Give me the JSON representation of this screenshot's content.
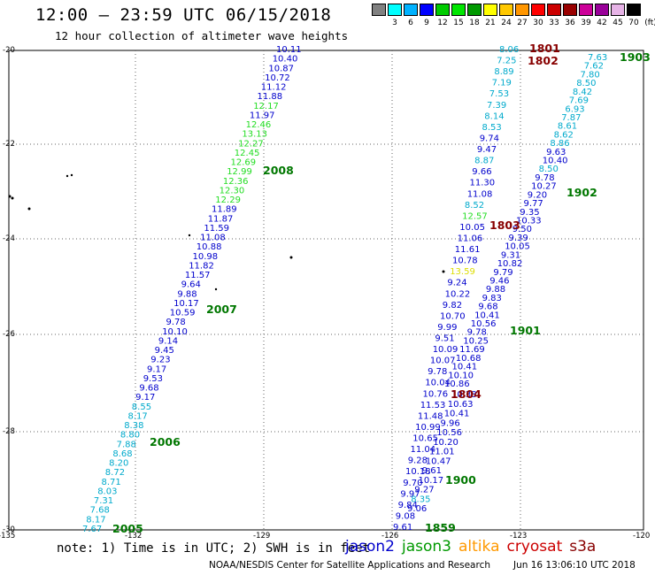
{
  "header": {
    "title": "12:00 — 23:59 UTC 06/15/2018",
    "subtitle": "12 hour collection of altimeter wave heights"
  },
  "color_scale": {
    "unit": "(ft)",
    "bins": [
      {
        "label": "",
        "color": "#808080"
      },
      {
        "label": "3",
        "color": "#00ffff"
      },
      {
        "label": "6",
        "color": "#00b2ff"
      },
      {
        "label": "9",
        "color": "#0000ff"
      },
      {
        "label": "12",
        "color": "#00cc00"
      },
      {
        "label": "15",
        "color": "#00e600"
      },
      {
        "label": "18",
        "color": "#009900"
      },
      {
        "label": "21",
        "color": "#ffff00"
      },
      {
        "label": "24",
        "color": "#ffc800"
      },
      {
        "label": "27",
        "color": "#ff9600"
      },
      {
        "label": "30",
        "color": "#ff0000"
      },
      {
        "label": "33",
        "color": "#cc0000"
      },
      {
        "label": "36",
        "color": "#990000"
      },
      {
        "label": "39",
        "color": "#cc0099"
      },
      {
        "label": "42",
        "color": "#990099"
      },
      {
        "label": "45",
        "color": "#e6b3e6"
      },
      {
        "label": "70",
        "color": "#000000"
      }
    ]
  },
  "map": {
    "lat_labels": [
      "-20",
      "-22",
      "-24",
      "-26",
      "-28",
      "-30"
    ],
    "lon_labels": [
      "-135",
      "-132",
      "-129",
      "-126",
      "-123",
      "-120"
    ],
    "colors": {
      "c1": "#00aacc",
      "c2": "#0000cc",
      "c3": "#22dd22",
      "c4": "#dddd00",
      "time": "#007700",
      "s3a": "#880000"
    },
    "track_labels": [
      {
        "text": "2008",
        "color": "time"
      },
      {
        "text": "2007",
        "color": "time"
      },
      {
        "text": "2006",
        "color": "time"
      },
      {
        "text": "2005",
        "color": "time"
      },
      {
        "text": "1903",
        "color": "time"
      },
      {
        "text": "1902",
        "color": "time"
      },
      {
        "text": "1901",
        "color": "time"
      },
      {
        "text": "1900",
        "color": "time"
      },
      {
        "text": "1859",
        "color": "time"
      },
      {
        "text": "1801",
        "color": "s3a"
      },
      {
        "text": "1802",
        "color": "s3a"
      },
      {
        "text": "1803",
        "color": "s3a"
      },
      {
        "text": "1804",
        "color": "s3a"
      }
    ],
    "track_a": [
      [
        "10.11",
        "c2"
      ],
      [
        "10.40",
        "c2"
      ],
      [
        "10.87",
        "c2"
      ],
      [
        "10.72",
        "c2"
      ],
      [
        "11.12",
        "c2"
      ],
      [
        "11.88",
        "c2"
      ],
      [
        "12.17",
        "c3"
      ],
      [
        "11.97",
        "c2"
      ],
      [
        "12.46",
        "c3"
      ],
      [
        "13.13",
        "c3"
      ],
      [
        "12.27",
        "c3"
      ],
      [
        "12.45",
        "c3"
      ],
      [
        "12.69",
        "c3"
      ],
      [
        "12.99",
        "c3"
      ],
      [
        "12.36",
        "c3"
      ],
      [
        "12.30",
        "c3"
      ],
      [
        "12.29",
        "c3"
      ],
      [
        "11.89",
        "c2"
      ],
      [
        "11.87",
        "c2"
      ],
      [
        "11.59",
        "c2"
      ],
      [
        "11.08",
        "c2"
      ],
      [
        "10.88",
        "c2"
      ],
      [
        "10.98",
        "c2"
      ],
      [
        "11.82",
        "c2"
      ],
      [
        "11.57",
        "c2"
      ],
      [
        "9.64",
        "c2"
      ],
      [
        "9.88",
        "c2"
      ],
      [
        "10.17",
        "c2"
      ],
      [
        "10.59",
        "c2"
      ],
      [
        "9.78",
        "c2"
      ],
      [
        "10.10",
        "c2"
      ],
      [
        "9.14",
        "c2"
      ],
      [
        "9.45",
        "c2"
      ],
      [
        "9.23",
        "c2"
      ],
      [
        "9.17",
        "c2"
      ],
      [
        "9.53",
        "c2"
      ],
      [
        "9.68",
        "c2"
      ],
      [
        "9.17",
        "c2"
      ],
      [
        "8.55",
        "c1"
      ],
      [
        "8.17",
        "c1"
      ],
      [
        "8.38",
        "c1"
      ],
      [
        "8.80",
        "c1"
      ],
      [
        "7.88",
        "c1"
      ],
      [
        "8.68",
        "c1"
      ],
      [
        "8.20",
        "c1"
      ],
      [
        "8.72",
        "c1"
      ],
      [
        "8.71",
        "c1"
      ],
      [
        "8.03",
        "c1"
      ],
      [
        "7.31",
        "c1"
      ],
      [
        "7.68",
        "c1"
      ],
      [
        "8.17",
        "c1"
      ],
      [
        "7.67",
        "c1"
      ]
    ],
    "track_b": [
      [
        "8.06",
        "c1"
      ],
      [
        "7.25",
        "c1"
      ],
      [
        "8.89",
        "c1"
      ],
      [
        "7.19",
        "c1"
      ],
      [
        "7.53",
        "c1"
      ],
      [
        "7.39",
        "c1"
      ],
      [
        "8.14",
        "c1"
      ],
      [
        "8.53",
        "c1"
      ],
      [
        "9.74",
        "c2"
      ],
      [
        "9.47",
        "c2"
      ],
      [
        "8.87",
        "c1"
      ],
      [
        "9.66",
        "c2"
      ],
      [
        "11.30",
        "c2"
      ],
      [
        "11.08",
        "c2"
      ],
      [
        "8.52",
        "c1"
      ],
      [
        "12.57",
        "c3"
      ],
      [
        "10.05",
        "c2"
      ],
      [
        "11.06",
        "c2"
      ],
      [
        "11.61",
        "c2"
      ],
      [
        "10.78",
        "c2"
      ],
      [
        "13.59",
        "c4"
      ],
      [
        "9.24",
        "c2"
      ],
      [
        "10.22",
        "c2"
      ],
      [
        "9.82",
        "c2"
      ],
      [
        "10.70",
        "c2"
      ],
      [
        "9.99",
        "c2"
      ],
      [
        "9.51",
        "c2"
      ],
      [
        "10.09",
        "c2"
      ],
      [
        "10.07",
        "c2"
      ],
      [
        "9.78",
        "c2"
      ],
      [
        "10.04",
        "c2"
      ],
      [
        "10.76",
        "c2"
      ],
      [
        "11.53",
        "c2"
      ],
      [
        "11.48",
        "c2"
      ],
      [
        "10.99",
        "c2"
      ],
      [
        "10.65",
        "c2"
      ],
      [
        "11.04",
        "c2"
      ],
      [
        "9.28",
        "c2"
      ],
      [
        "10.18",
        "c2"
      ],
      [
        "9.70",
        "c2"
      ],
      [
        "9.97",
        "c2"
      ],
      [
        "9.84",
        "c2"
      ],
      [
        "9.08",
        "c2"
      ],
      [
        "9.61",
        "c2"
      ]
    ],
    "track_c": [
      [
        "10.38",
        "c2"
      ],
      [
        "10.63",
        "c2"
      ],
      [
        "10.41",
        "c2"
      ],
      [
        "9.96",
        "c2"
      ],
      [
        "10.56",
        "c2"
      ],
      [
        "10.20",
        "c2"
      ],
      [
        "11.01",
        "c2"
      ],
      [
        "10.47",
        "c2"
      ],
      [
        "9.61",
        "c2"
      ],
      [
        "10.17",
        "c2"
      ],
      [
        "9.27",
        "c2"
      ],
      [
        "8.35",
        "c1"
      ],
      [
        "9.06",
        "c2"
      ]
    ],
    "track_d": [
      [
        "10.86",
        "c2"
      ],
      [
        "10.10",
        "c2"
      ],
      [
        "10.41",
        "c2"
      ],
      [
        "10.68",
        "c2"
      ],
      [
        "11.69",
        "c2"
      ],
      [
        "10.25",
        "c2"
      ],
      [
        "9.78",
        "c2"
      ],
      [
        "10.56",
        "c2"
      ],
      [
        "10.41",
        "c2"
      ],
      [
        "9.68",
        "c2"
      ],
      [
        "9.83",
        "c2"
      ],
      [
        "9.88",
        "c2"
      ],
      [
        "9.46",
        "c2"
      ],
      [
        "9.79",
        "c2"
      ],
      [
        "10.82",
        "c2"
      ],
      [
        "9.31",
        "c2"
      ],
      [
        "10.05",
        "c2"
      ],
      [
        "9.39",
        "c2"
      ],
      [
        "9.50",
        "c2"
      ],
      [
        "10.33",
        "c2"
      ],
      [
        "9.35",
        "c2"
      ],
      [
        "9.77",
        "c2"
      ],
      [
        "9.20",
        "c2"
      ],
      [
        "10.27",
        "c2"
      ],
      [
        "9.78",
        "c2"
      ],
      [
        "8.50",
        "c1"
      ],
      [
        "10.40",
        "c2"
      ],
      [
        "9.63",
        "c2"
      ],
      [
        "8.86",
        "c1"
      ],
      [
        "8.62",
        "c1"
      ],
      [
        "8.61",
        "c1"
      ],
      [
        "7.87",
        "c1"
      ],
      [
        "6.93",
        "c1"
      ],
      [
        "7.69",
        "c1"
      ],
      [
        "8.42",
        "c1"
      ],
      [
        "8.50",
        "c1"
      ],
      [
        "7.80",
        "c1"
      ],
      [
        "7.62",
        "c1"
      ],
      [
        "7.63",
        "c1"
      ]
    ]
  },
  "footer": {
    "note": "note:  1) Time is in UTC;  2) SWH is in feet",
    "satellites": [
      {
        "name": "jason2",
        "color": "#0000cc"
      },
      {
        "name": "jason3",
        "color": "#009900"
      },
      {
        "name": "altika",
        "color": "#ff9900"
      },
      {
        "name": "cryosat",
        "color": "#cc0000"
      },
      {
        "name": "s3a",
        "color": "#880000"
      }
    ],
    "credit": "NOAA/NESDIS Center for Satellite Applications and Research",
    "stamp": "Jun 16 13:06:10 UTC 2018"
  }
}
